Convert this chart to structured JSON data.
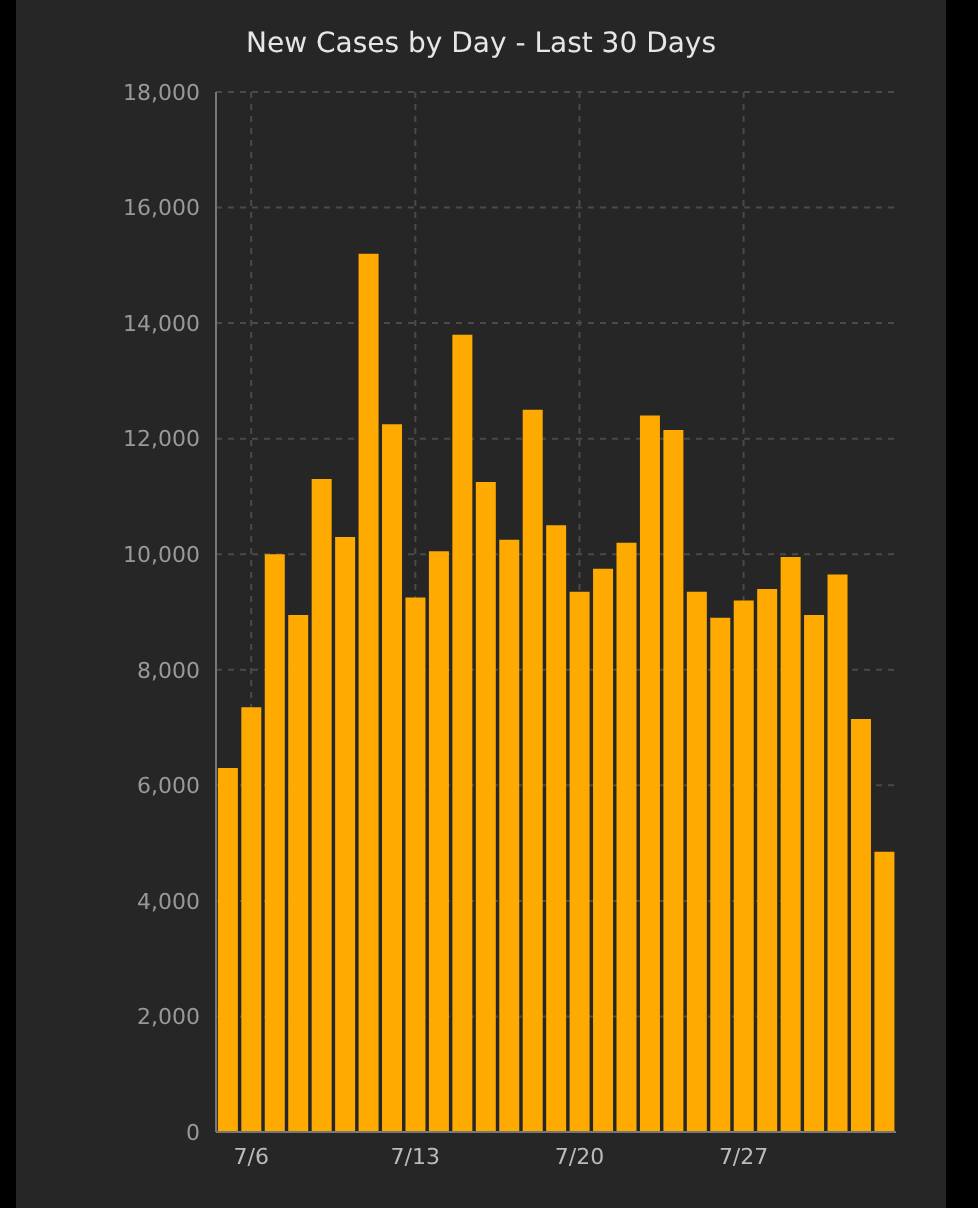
{
  "chart_data": {
    "type": "bar",
    "title": "New Cases by Day - Last 30 Days",
    "categories": [
      null,
      "7/6",
      null,
      null,
      null,
      null,
      null,
      null,
      "7/13",
      null,
      null,
      null,
      null,
      null,
      null,
      "7/20",
      null,
      null,
      null,
      null,
      null,
      null,
      "7/27",
      null,
      null,
      null,
      null,
      null,
      null
    ],
    "values": [
      6300,
      7350,
      10000,
      8950,
      11300,
      10300,
      15200,
      12250,
      9250,
      10050,
      13800,
      11250,
      10250,
      12500,
      10500,
      9350,
      9750,
      10200,
      12400,
      12150,
      9350,
      8900,
      9200,
      9400,
      9950,
      8950,
      9650,
      7150,
      4850
    ],
    "color": "#ffaa00",
    "ylim": [
      0,
      18000
    ],
    "yticks": [
      0,
      {
        "value": 2000,
        "label": "2,000"
      },
      {
        "value": 4000,
        "label": "4,000"
      },
      {
        "value": 6000,
        "label": "6,000"
      },
      {
        "value": 8000,
        "label": "8,000"
      },
      {
        "value": 10000,
        "label": "10,000"
      },
      {
        "value": 12000,
        "label": "12,000"
      },
      {
        "value": 14000,
        "label": "14,000"
      },
      {
        "value": 16000,
        "label": "16,000"
      },
      {
        "value": 18000,
        "label": "18,000"
      }
    ],
    "grid": true
  }
}
